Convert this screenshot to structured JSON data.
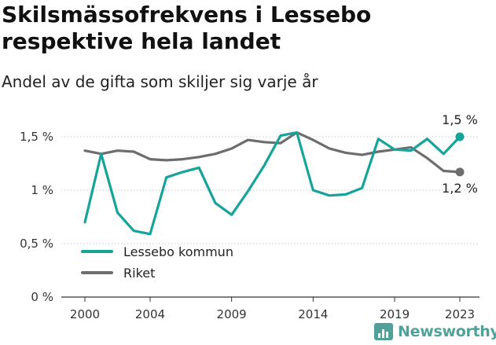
{
  "title": "Skilsmässofrekvens i Lessebo respektive hela landet",
  "subtitle": "Andel av de gifta som skiljer sig varje år",
  "logo_text": "Newsworthy",
  "colors": {
    "lessebo": "#16a49a",
    "riket": "#6d6d70",
    "grid": "#cccccc",
    "axis": "#333333",
    "logo": "#4fa19a"
  },
  "chart_data": {
    "type": "line",
    "x": [
      2000,
      2001,
      2002,
      2003,
      2004,
      2005,
      2006,
      2007,
      2008,
      2009,
      2010,
      2011,
      2012,
      2013,
      2014,
      2015,
      2016,
      2017,
      2018,
      2019,
      2020,
      2021,
      2022,
      2023
    ],
    "series": [
      {
        "name": "Lessebo kommun",
        "color": "#16a49a",
        "end_label": "1,5 %",
        "values": [
          0.7,
          1.34,
          0.79,
          0.62,
          0.59,
          1.12,
          1.17,
          1.21,
          0.88,
          0.77,
          0.99,
          1.23,
          1.51,
          1.54,
          1.0,
          0.95,
          0.96,
          1.02,
          1.48,
          1.38,
          1.37,
          1.48,
          1.34,
          1.5
        ]
      },
      {
        "name": "Riket",
        "color": "#6d6d70",
        "end_label": "1,2 %",
        "values": [
          1.37,
          1.34,
          1.37,
          1.36,
          1.29,
          1.28,
          1.29,
          1.31,
          1.34,
          1.39,
          1.47,
          1.45,
          1.44,
          1.54,
          1.47,
          1.39,
          1.35,
          1.33,
          1.36,
          1.38,
          1.4,
          1.3,
          1.18,
          1.17
        ]
      }
    ],
    "y_ticks": [
      0,
      0.5,
      1,
      1.5
    ],
    "y_tick_labels": [
      "0 %",
      "0,5 %",
      "1 %",
      "1,5 %"
    ],
    "x_ticks": [
      2000,
      2004,
      2009,
      2014,
      2019,
      2023
    ],
    "x_tick_labels": [
      "2000",
      "2004",
      "2009",
      "2014",
      "2019",
      "2023"
    ],
    "ylim": [
      0,
      1.6
    ],
    "grid": true,
    "legend_placement": "bottom-left"
  }
}
